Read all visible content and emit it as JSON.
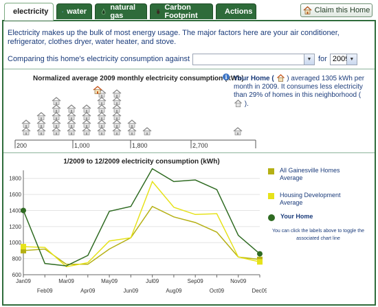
{
  "tabs": [
    {
      "label": "electricity",
      "icon": "lightning-icon",
      "active": true
    },
    {
      "label": "water",
      "icon": "water-drop-icon",
      "active": false
    },
    {
      "label": "natural gas",
      "icon": "flame-icon",
      "active": false
    },
    {
      "label": "Carbon Footprint",
      "icon": "footprint-icon",
      "active": false
    },
    {
      "label": "Actions",
      "icon": "actions-icon",
      "active": false
    }
  ],
  "claim_button": {
    "label": "Claim this Home",
    "icon": "house-icon"
  },
  "intro_text": "Electricity makes up the bulk of most energy usage. The major factors here are your air conditioner, refrigerator, clothes dryer, water heater, and stove.",
  "comparison": {
    "label": "Comparing this home's electricity consumption against",
    "selected": "",
    "for_label": "for",
    "year": "2009"
  },
  "histogram": {
    "title": "Normalized average 2009 monthly electricity consumption (kWh)",
    "axis_labels": [
      "200",
      "1,000",
      "1,800",
      "2,700"
    ],
    "summary_your_home": "Your Home (",
    "summary_text_1": ") averaged 1305 kWh per month in 2009.  It consumes less electricity than 29% of homes in this neighborhood (",
    "summary_text_2": ")."
  },
  "chart_data": {
    "type": "line",
    "title": "1/2009 to 12/2009 electricity consumption (kWh)",
    "categories": [
      "Jan09",
      "Feb09",
      "Mar09",
      "Apr09",
      "May09",
      "Jun09",
      "Jul09",
      "Aug09",
      "Sep09",
      "Oct09",
      "Nov09",
      "Dec09"
    ],
    "ylim": [
      600,
      1900
    ],
    "yticks": [
      600,
      800,
      1000,
      1200,
      1400,
      1600,
      1800
    ],
    "series": [
      {
        "name": "All Gainesville Homes Average",
        "color": "#b5b014",
        "values": [
          900,
          920,
          730,
          730,
          920,
          1060,
          1450,
          1320,
          1250,
          1130,
          820,
          790
        ]
      },
      {
        "name": "Housing Development Average",
        "color": "#e6e21a",
        "values": [
          950,
          940,
          700,
          750,
          1020,
          1060,
          1760,
          1440,
          1350,
          1360,
          820,
          760
        ]
      },
      {
        "name": "Your Home",
        "color": "#2f6b22",
        "values": [
          1400,
          740,
          710,
          840,
          1390,
          1450,
          1920,
          1760,
          1780,
          1660,
          1090,
          860
        ]
      }
    ],
    "legend_position": "right"
  },
  "legend_note": "You can click the labels above to toggle the associated chart line"
}
